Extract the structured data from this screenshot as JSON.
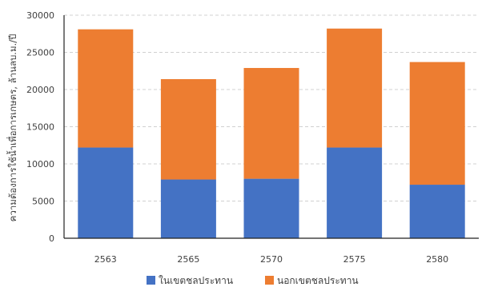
{
  "chart_data": {
    "type": "bar",
    "stacked": true,
    "title": "",
    "xlabel": "",
    "ylabel": "ความต้องการใช้น้ำเพื่อการเกษตร, ล้านลบ.ม./ปี",
    "categories": [
      "2563",
      "2565",
      "2570",
      "2575",
      "2580"
    ],
    "series": [
      {
        "name": "ในเขตชลประทาน",
        "color": "#4472c4",
        "values": [
          12200,
          7900,
          8000,
          12200,
          7200
        ]
      },
      {
        "name": "นอกเขตชลประทาน",
        "color": "#ed7d31",
        "values": [
          15900,
          13500,
          14900,
          16000,
          16500
        ]
      }
    ],
    "ylim": [
      0,
      30000
    ],
    "yticks": [
      "0",
      "5000",
      "10000",
      "15000",
      "20000",
      "25000",
      "30000"
    ],
    "grid": true,
    "legend_position": "bottom"
  }
}
